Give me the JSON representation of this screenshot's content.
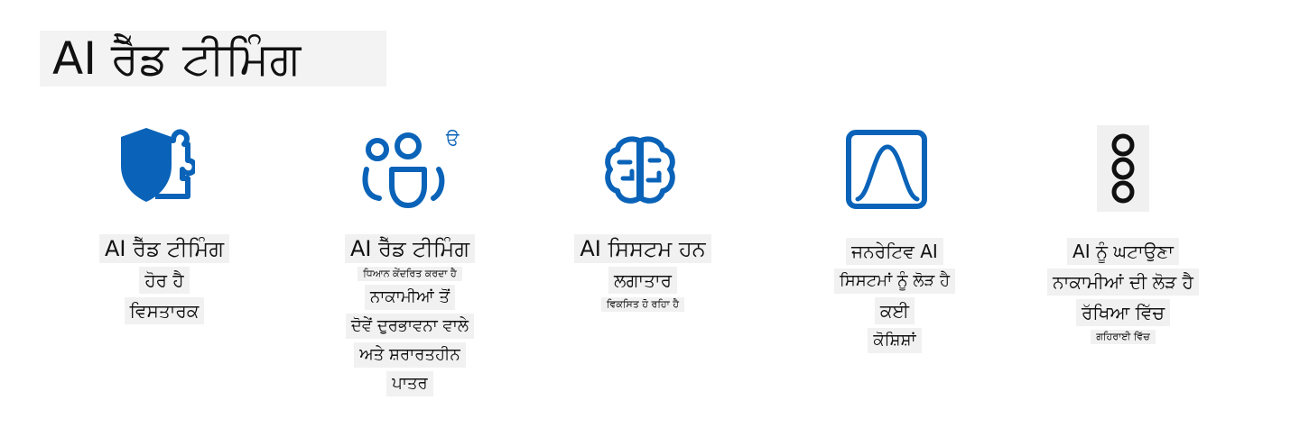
{
  "page": {
    "title": "AI ਰੈੱਡ ਟੀਮਿੰਗ"
  },
  "icons": {
    "col1": "shield-puzzle-icon",
    "col2": "people-group-icon",
    "col3": "brain-circuit-icon",
    "col4": "bell-curve-icon",
    "col5": "three-circles-icon",
    "col2_glyph": "ੳ"
  },
  "colors": {
    "accent": "#0a63b8",
    "text": "#111111",
    "highlight": "#f1f1f1"
  },
  "columns": [
    {
      "lines": [
        "AI ਰੈੱਡ ਟੀਮਿੰਗ",
        "ਹੋਰ ਹੈ",
        "ਵਿਸਤਾਰਕ"
      ]
    },
    {
      "lines": [
        "AI ਰੈੱਡ ਟੀਮਿੰਗ",
        "ਧਿਆਨ ਕੇਂਦਰਿਤ ਕਰਦਾ ਹੈ",
        "ਨਾਕਾਮੀਆਂ ਤੋਂ",
        "ਦੋਵੇਂ ਦੁਰਭਾਵਨਾ ਵਾਲੇ",
        "ਅਤੇ ਸ਼ਰਾਰਤਹੀਨ",
        "ਪਾਤਰ"
      ]
    },
    {
      "lines": [
        "AI ਸਿਸਟਮ ਹਨ",
        "ਲਗਾਤਾਰ",
        "ਵਿਕਸਿਤ ਹੋ ਰਹਿਾ ਹੈ"
      ]
    },
    {
      "lines": [
        "ਜਨਰੇਟਿਵ AI",
        "ਸਿਸਟਮਾਂ ਨੂੰ ਲੋੜ ਹੈ",
        "ਕਈ",
        "ਕੋਸ਼ਿਸ਼ਾਂ"
      ]
    },
    {
      "lines": [
        "AI ਨੂੰ ਘਟਾਉਣਾ",
        "ਨਾਕਾਮੀਆਂ ਦੀ ਲੋੜ ਹੈ",
        "ਰੱਖਿਆ ਵਿੱਚ",
        "ਗਹਿਰਾਈ ਵਿੱਚ"
      ]
    }
  ]
}
